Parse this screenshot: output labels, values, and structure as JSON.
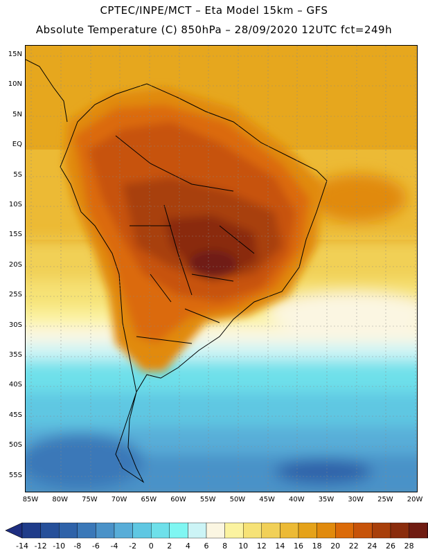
{
  "header": {
    "line1": "CPTEC/INPE/MCT –  Eta Model 15km – GFS",
    "line2": "Absolute Temperature (C) 850hPa – 28/09/2020 12UTC fct=249h"
  },
  "lat_labels": [
    "15N",
    "10N",
    "5N",
    "EQ",
    "5S",
    "10S",
    "15S",
    "20S",
    "25S",
    "30S",
    "35S",
    "40S",
    "45S",
    "50S",
    "55S"
  ],
  "lon_labels": [
    "85W",
    "80W",
    "75W",
    "70W",
    "65W",
    "60W",
    "55W",
    "50W",
    "45W",
    "40W",
    "35W",
    "30W",
    "25W",
    "20W"
  ],
  "colorbar": {
    "ticks": [
      "-14",
      "-12",
      "-10",
      "-8",
      "-6",
      "-4",
      "-2",
      "0",
      "2",
      "4",
      "6",
      "8",
      "10",
      "12",
      "14",
      "16",
      "18",
      "20",
      "22",
      "24",
      "26",
      "28"
    ],
    "colors": [
      "#1f3c8a",
      "#26509a",
      "#2e62a9",
      "#3a78b8",
      "#4a92c8",
      "#58add8",
      "#5fc7e2",
      "#6ee0ea",
      "#7ff6f2",
      "#ccf4f6",
      "#fbf6e2",
      "#fbf3a0",
      "#f6e276",
      "#f1d057",
      "#ecba35",
      "#e5a219",
      "#e18a0c",
      "#db6a08",
      "#c75309",
      "#a83f0a",
      "#8a2c0c",
      "#701c12"
    ],
    "under_color": "#1e2e80",
    "over_color": "#5c0e1e"
  }
}
